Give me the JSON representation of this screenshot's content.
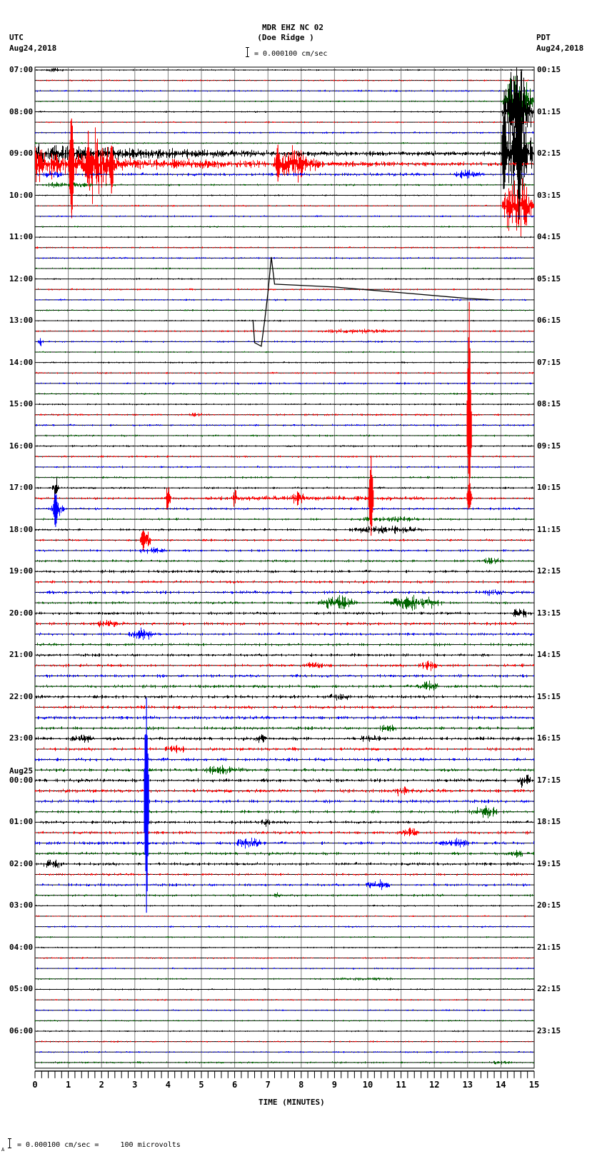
{
  "header": {
    "station": "MDR EHZ NC 02",
    "location": "(Doe Ridge )",
    "left_tz": "UTC",
    "left_date": "Aug24,2018",
    "right_tz": "PDT",
    "right_date": "Aug24,2018",
    "scale_label": "= 0.000100 cm/sec"
  },
  "footer": {
    "scale_prefix": "A",
    "scale_label": "= 0.000100 cm/sec =     100 microvolts"
  },
  "colors": {
    "trace_cycle": [
      "#000000",
      "#ff0000",
      "#0000ff",
      "#006400"
    ],
    "grid": "#808080"
  },
  "chart_data": {
    "type": "line",
    "title": "MDR EHZ NC 02 (Doe Ridge )",
    "xlabel": "TIME (MINUTES)",
    "ylabel": "",
    "x_ticks": [
      0,
      1,
      2,
      3,
      4,
      5,
      6,
      7,
      8,
      9,
      10,
      11,
      12,
      13,
      14,
      15
    ],
    "xlim": [
      0,
      15
    ],
    "grid": true,
    "traces_per_hour": 4,
    "minutes_per_trace": 15,
    "num_traces": 96,
    "left_labels": [
      {
        "trace": 0,
        "text": "07:00"
      },
      {
        "trace": 4,
        "text": "08:00"
      },
      {
        "trace": 8,
        "text": "09:00"
      },
      {
        "trace": 12,
        "text": "10:00"
      },
      {
        "trace": 16,
        "text": "11:00"
      },
      {
        "trace": 20,
        "text": "12:00"
      },
      {
        "trace": 24,
        "text": "13:00"
      },
      {
        "trace": 28,
        "text": "14:00"
      },
      {
        "trace": 32,
        "text": "15:00"
      },
      {
        "trace": 36,
        "text": "16:00"
      },
      {
        "trace": 40,
        "text": "17:00"
      },
      {
        "trace": 44,
        "text": "18:00"
      },
      {
        "trace": 48,
        "text": "19:00"
      },
      {
        "trace": 52,
        "text": "20:00"
      },
      {
        "trace": 56,
        "text": "21:00"
      },
      {
        "trace": 60,
        "text": "22:00"
      },
      {
        "trace": 64,
        "text": "23:00"
      },
      {
        "trace": 68,
        "text": "00:00",
        "date": "Aug25"
      },
      {
        "trace": 72,
        "text": "01:00"
      },
      {
        "trace": 76,
        "text": "02:00"
      },
      {
        "trace": 80,
        "text": "03:00"
      },
      {
        "trace": 84,
        "text": "04:00"
      },
      {
        "trace": 88,
        "text": "05:00"
      },
      {
        "trace": 92,
        "text": "06:00"
      }
    ],
    "right_labels": [
      "00:15",
      "01:15",
      "02:15",
      "03:15",
      "04:15",
      "05:15",
      "06:15",
      "07:15",
      "08:15",
      "09:15",
      "10:15",
      "11:15",
      "12:15",
      "13:15",
      "14:15",
      "15:15",
      "16:15",
      "17:15",
      "18:15",
      "19:15",
      "20:15",
      "21:15",
      "22:15",
      "23:15"
    ],
    "noise_levels": [
      0.8,
      0.8,
      0.9,
      0.8,
      0.8,
      0.8,
      0.9,
      0.8,
      1.0,
      1.4,
      1.6,
      1.0,
      0.8,
      0.8,
      0.9,
      0.8,
      0.8,
      0.9,
      0.9,
      0.8,
      0.8,
      0.9,
      0.9,
      0.8,
      0.8,
      0.9,
      0.9,
      0.8,
      0.8,
      0.9,
      1.0,
      0.9,
      0.9,
      1.0,
      1.0,
      1.0,
      1.0,
      1.0,
      1.0,
      1.0,
      1.1,
      1.2,
      1.2,
      1.1,
      1.2,
      1.2,
      1.2,
      1.3,
      1.4,
      1.4,
      1.6,
      1.3,
      1.5,
      1.5,
      1.4,
      1.4,
      1.5,
      1.5,
      1.6,
      1.5,
      1.7,
      1.6,
      1.7,
      1.6,
      1.7,
      1.6,
      1.7,
      1.6,
      1.8,
      1.8,
      1.6,
      1.5,
      1.5,
      1.5,
      1.5,
      1.5,
      1.6,
      1.2,
      1.4,
      1.2,
      0.9,
      0.8,
      0.9,
      0.8,
      0.8,
      0.8,
      0.8,
      0.8,
      0.8,
      0.8,
      0.8,
      0.8,
      0.8,
      0.8,
      0.8,
      1.0
    ],
    "events": [
      {
        "trace": 0,
        "start": 0.2,
        "end": 1.0,
        "amp": 3
      },
      {
        "trace": 8,
        "start": 0.0,
        "end": 15.0,
        "amp": 12,
        "decay": 0.25
      },
      {
        "trace": 9,
        "start": 0.0,
        "end": 4.0,
        "amp": 22,
        "decay": 0.4
      },
      {
        "trace": 9,
        "start": 4.0,
        "end": 15.0,
        "amp": 6,
        "decay": 0.6
      },
      {
        "trace": 9,
        "start": 7.0,
        "end": 8.5,
        "amp": 20
      },
      {
        "trace": 9,
        "start": 8.2,
        "end": 8.6,
        "amp": 14
      },
      {
        "trace": 9,
        "start": 1.0,
        "end": 1.2,
        "amp": 85
      },
      {
        "trace": 9,
        "start": 1.3,
        "end": 2.5,
        "amp": 45
      },
      {
        "trace": 10,
        "start": 12.3,
        "end": 13.6,
        "amp": 6
      },
      {
        "trace": 10,
        "start": 0.0,
        "end": 1.0,
        "amp": 4
      },
      {
        "trace": 11,
        "start": 0.0,
        "end": 2.0,
        "amp": 4
      },
      {
        "trace": 4,
        "start": 14.0,
        "end": 15.0,
        "amp": 55
      },
      {
        "trace": 8,
        "start": 14.0,
        "end": 15.0,
        "amp": 70
      },
      {
        "trace": 3,
        "start": 14.0,
        "end": 15.0,
        "amp": 40
      },
      {
        "trace": 13,
        "start": 14.0,
        "end": 15.0,
        "amp": 45
      },
      {
        "trace": 25,
        "start": 8.0,
        "end": 11.5,
        "amp": 3
      },
      {
        "trace": 26,
        "start": 0.05,
        "end": 0.25,
        "amp": 6
      },
      {
        "trace": 33,
        "start": 4.5,
        "end": 5.2,
        "amp": 3
      },
      {
        "trace": 40,
        "start": 0.5,
        "end": 0.7,
        "amp": 15
      },
      {
        "trace": 41,
        "start": 2.0,
        "end": 15.0,
        "amp": 3
      },
      {
        "trace": 41,
        "start": 3.9,
        "end": 4.1,
        "amp": 18
      },
      {
        "trace": 41,
        "start": 5.9,
        "end": 6.1,
        "amp": 12
      },
      {
        "trace": 41,
        "start": 7.6,
        "end": 8.2,
        "amp": 8
      },
      {
        "trace": 42,
        "start": 0.4,
        "end": 1.0,
        "amp": 8
      },
      {
        "trace": 43,
        "start": 9.3,
        "end": 12.0,
        "amp": 4
      },
      {
        "trace": 44,
        "start": 9.0,
        "end": 12.0,
        "amp": 5
      },
      {
        "trace": 45,
        "start": 3.1,
        "end": 3.5,
        "amp": 14
      },
      {
        "trace": 46,
        "start": 3.0,
        "end": 4.0,
        "amp": 5
      },
      {
        "trace": 47,
        "start": 13.3,
        "end": 14.2,
        "amp": 5
      },
      {
        "trace": 50,
        "start": 13.4,
        "end": 14.2,
        "amp": 5
      },
      {
        "trace": 51,
        "start": 8.4,
        "end": 9.8,
        "amp": 10
      },
      {
        "trace": 51,
        "start": 10.3,
        "end": 12.4,
        "amp": 10
      },
      {
        "trace": 52,
        "start": 14.2,
        "end": 15.0,
        "amp": 6
      },
      {
        "trace": 53,
        "start": 1.7,
        "end": 2.8,
        "amp": 6
      },
      {
        "trace": 54,
        "start": 2.7,
        "end": 3.7,
        "amp": 8
      },
      {
        "trace": 57,
        "start": 8.0,
        "end": 8.8,
        "amp": 5
      },
      {
        "trace": 57,
        "start": 11.4,
        "end": 12.2,
        "amp": 6
      },
      {
        "trace": 59,
        "start": 11.4,
        "end": 12.2,
        "amp": 7
      },
      {
        "trace": 60,
        "start": 8.5,
        "end": 9.7,
        "amp": 5
      },
      {
        "trace": 63,
        "start": 10.2,
        "end": 11.0,
        "amp": 5
      },
      {
        "trace": 64,
        "start": 0.8,
        "end": 2.0,
        "amp": 5
      },
      {
        "trace": 64,
        "start": 6.5,
        "end": 7.0,
        "amp": 6
      },
      {
        "trace": 64,
        "start": 9.5,
        "end": 10.8,
        "amp": 5
      },
      {
        "trace": 65,
        "start": 3.7,
        "end": 4.6,
        "amp": 7
      },
      {
        "trace": 67,
        "start": 4.8,
        "end": 6.5,
        "amp": 6
      },
      {
        "trace": 68,
        "start": 14.4,
        "end": 15.0,
        "amp": 8
      },
      {
        "trace": 69,
        "start": 10.5,
        "end": 11.5,
        "amp": 6
      },
      {
        "trace": 71,
        "start": 13.0,
        "end": 14.0,
        "amp": 8
      },
      {
        "trace": 72,
        "start": 6.7,
        "end": 7.2,
        "amp": 6
      },
      {
        "trace": 73,
        "start": 10.8,
        "end": 11.6,
        "amp": 7
      },
      {
        "trace": 74,
        "start": 5.8,
        "end": 7.0,
        "amp": 7
      },
      {
        "trace": 74,
        "start": 12.0,
        "end": 13.2,
        "amp": 6
      },
      {
        "trace": 75,
        "start": 14.0,
        "end": 15.0,
        "amp": 5
      },
      {
        "trace": 76,
        "start": 0.0,
        "end": 1.0,
        "amp": 5
      },
      {
        "trace": 78,
        "start": 9.8,
        "end": 10.8,
        "amp": 6
      },
      {
        "trace": 79,
        "start": 7.0,
        "end": 7.6,
        "amp": 3
      },
      {
        "trace": 87,
        "start": 8.0,
        "end": 11.8,
        "amp": 2
      },
      {
        "trace": 95,
        "start": 13.5,
        "end": 14.5,
        "amp": 3
      }
    ],
    "spikes": [
      {
        "trace": 9,
        "minute": 1.1,
        "up": 95,
        "down": 95,
        "color": "#ff0000"
      },
      {
        "trace": 9,
        "minute": 1.6,
        "up": 50,
        "down": 40,
        "color": "#ff0000"
      },
      {
        "trace": 9,
        "minute": 2.3,
        "up": 35,
        "down": 55,
        "color": "#ff0000"
      },
      {
        "trace": 9,
        "minute": 7.3,
        "up": 30,
        "down": 30,
        "color": "#ff0000"
      },
      {
        "trace": 8,
        "minute": 14.55,
        "up": 110,
        "down": 100,
        "color": "#000000"
      },
      {
        "trace": 8,
        "minute": 14.1,
        "up": 110,
        "down": 70,
        "color": "#000000"
      },
      {
        "trace": 35,
        "minute": 13.05,
        "up": 205,
        "down": 80,
        "color": "#ff0000"
      },
      {
        "trace": 41,
        "minute": 10.1,
        "up": 60,
        "down": 60,
        "color": "#ff0000"
      },
      {
        "trace": 41,
        "minute": 13.05,
        "up": 30,
        "down": 20,
        "color": "#ff0000"
      },
      {
        "trace": 42,
        "minute": 0.62,
        "up": 30,
        "down": 35,
        "color": "#0000ff"
      },
      {
        "trace": 45,
        "minute": 3.25,
        "up": 20,
        "down": 15,
        "color": "#ff0000"
      },
      {
        "trace": 70,
        "minute": 3.35,
        "up": 200,
        "down": 190,
        "color": "#0000ff"
      }
    ],
    "offscale_drift": {
      "trace": 22,
      "points": [
        [
          6.55,
          28
        ],
        [
          6.6,
          60
        ],
        [
          6.8,
          65
        ],
        [
          6.9,
          30
        ],
        [
          7.0,
          -10
        ],
        [
          7.1,
          -60
        ],
        [
          7.2,
          -22
        ],
        [
          9.0,
          -18
        ],
        [
          11.0,
          -10
        ],
        [
          13.0,
          -2
        ],
        [
          13.8,
          0
        ]
      ]
    }
  }
}
